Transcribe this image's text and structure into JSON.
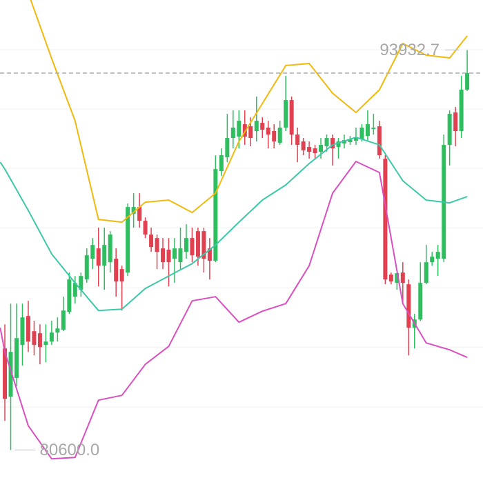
{
  "chart_data": {
    "type": "candlestick",
    "open": [
      83985,
      82375,
      83000,
      84100,
      85066,
      84560,
      84491,
      84100,
      84215,
      84514,
      84606,
      85204,
      85710,
      85940,
      86285,
      86975,
      87320,
      86745,
      86860,
      86975,
      86630,
      86515,
      88470,
      88700,
      88240,
      87780,
      87665,
      87320,
      87274,
      86975,
      86860,
      87205,
      87665,
      87895,
      87895,
      87320,
      86906,
      89896,
      90356,
      91000,
      91046,
      91460,
      91391,
      91230,
      91506,
      91345,
      91230,
      90839,
      91345,
      92265,
      91115,
      90885,
      90701,
      90655,
      90540,
      90724,
      91000,
      90701,
      90816,
      90862,
      90908,
      90954,
      91069,
      91299,
      91391,
      90310,
      86446,
      86170,
      86515,
      86124,
      84675,
      84951,
      86170,
      86860,
      86975,
      86975,
      90770,
      91851,
      91230,
      92610
    ],
    "close": [
      82306,
      83870,
      84330,
      85020,
      84215,
      84100,
      84031,
      84215,
      84514,
      84652,
      85250,
      86285,
      86170,
      86400,
      87090,
      87435,
      86745,
      87435,
      87780,
      86216,
      86216,
      88700,
      88700,
      88240,
      87780,
      87366,
      87205,
      86860,
      86860,
      87320,
      87320,
      87665,
      87090,
      87044,
      86975,
      86906,
      89965,
      90425,
      91000,
      91345,
      91575,
      91046,
      91000,
      91575,
      91276,
      91115,
      90885,
      91345,
      92265,
      91115,
      90770,
      90586,
      90540,
      90494,
      90770,
      91000,
      90655,
      90885,
      90931,
      90954,
      91000,
      91345,
      91460,
      91345,
      90425,
      86285,
      86216,
      86492,
      86170,
      84675,
      84951,
      86170,
      86860,
      87044,
      87205,
      90770,
      91805,
      91230,
      92610,
      93162
    ],
    "high": [
      84790,
      85480,
      85480,
      85480,
      85572,
      84905,
      84790,
      84790,
      84905,
      85020,
      85710,
      86515,
      86400,
      86515,
      87320,
      87665,
      88010,
      88010,
      87895,
      87320,
      86745,
      88815,
      89160,
      89160,
      88355,
      88010,
      87780,
      87665,
      87665,
      87665,
      88010,
      88125,
      88010,
      88010,
      88010,
      87665,
      90425,
      90655,
      91805,
      91920,
      91920,
      91920,
      91690,
      92380,
      91690,
      91575,
      91460,
      91575,
      93070,
      92380,
      91345,
      91000,
      90885,
      90770,
      91000,
      91115,
      91115,
      91000,
      91115,
      91069,
      91345,
      91460,
      91920,
      91805,
      91575,
      90425,
      86515,
      86515,
      86860,
      86285,
      85135,
      86860,
      87435,
      87205,
      87435,
      91115,
      91920,
      92035,
      93070,
      93932.7
    ],
    "low": [
      81570,
      80600,
      82720,
      83410,
      83870,
      83755,
      83456,
      83525,
      84100,
      84215,
      84560,
      85135,
      85480,
      85710,
      86170,
      86630,
      86055,
      85940,
      86515,
      85710,
      85250,
      86400,
      88010,
      88010,
      87665,
      87205,
      86630,
      86630,
      86055,
      86170,
      86630,
      86975,
      86860,
      86745,
      86515,
      86285,
      86860,
      89735,
      90195,
      90655,
      90655,
      90770,
      90724,
      90885,
      91000,
      90655,
      90655,
      90770,
      91230,
      90770,
      90195,
      90425,
      90310,
      90310,
      90310,
      90540,
      90080,
      90310,
      90655,
      90770,
      90770,
      90885,
      90885,
      91115,
      90310,
      86124,
      86124,
      85940,
      85480,
      83755,
      83985,
      84905,
      86124,
      86745,
      86400,
      86860,
      90080,
      90724,
      91000,
      92564
    ],
    "up_color": "#2ebd5f",
    "down_color": "#e0404f",
    "band_x": [
      -0.8,
      0,
      4,
      8,
      12,
      16,
      20,
      24,
      28,
      32,
      36,
      40,
      44,
      48,
      52,
      56,
      60,
      64,
      68,
      72,
      76,
      79
    ],
    "series": [
      {
        "color": "#f0b90b",
        "values": [
          null,
          null,
          95830,
          93645,
          91575,
          88286,
          88194,
          88861,
          88930,
          88516,
          89160,
          90885,
          92150,
          93415,
          93484,
          92495,
          91851,
          92610,
          94151,
          93760,
          93668,
          94404
        ]
      },
      {
        "color": "#3cc8a8",
        "values": [
          90195,
          89965,
          88585,
          87136,
          86170,
          85250,
          85296,
          85986,
          86400,
          86814,
          87435,
          88194,
          88930,
          89436,
          90149,
          90770,
          91023,
          90770,
          89574,
          88930,
          88838,
          89045
        ]
      },
      {
        "color": "#d94fc0",
        "values": [
          84675,
          83870,
          81409,
          80305,
          80351,
          82260,
          82421,
          83456,
          84054,
          85572,
          85710,
          84859,
          85227,
          85480,
          86745,
          89160,
          90218,
          89850,
          85480,
          84169,
          83939,
          83686
        ]
      }
    ],
    "max_label": "93932.7",
    "min_label": "80600.0",
    "xlim": [
      -0.83,
      81.7
    ],
    "ylim": [
      79300,
      95600
    ],
    "yticks": [
      82030,
      84031,
      86009,
      88010,
      89988,
      91966,
      93944
    ],
    "grid": true
  }
}
